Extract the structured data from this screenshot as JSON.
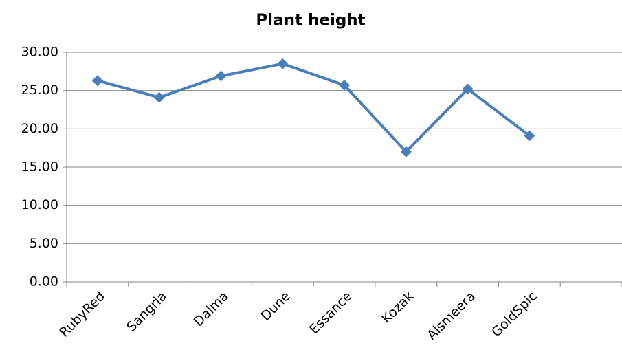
{
  "chart_data": {
    "type": "line",
    "title": "Plant height",
    "categories": [
      "RubyRed",
      "Sangria",
      "Dalma",
      "Dune",
      "Essance",
      "Kozak",
      "Alsmeera",
      "GoldSpic",
      null
    ],
    "values": [
      26.3,
      24.1,
      26.9,
      28.5,
      25.7,
      17.0,
      25.2,
      19.1,
      null
    ],
    "color": "#4a7ebb",
    "ylim": [
      0,
      30
    ],
    "yticks": [
      {
        "value": 0,
        "label": "0.00"
      },
      {
        "value": 5,
        "label": "5.00"
      },
      {
        "value": 10,
        "label": "10.00"
      },
      {
        "value": 15,
        "label": "15.00"
      },
      {
        "value": 20,
        "label": "20.00"
      },
      {
        "value": 25,
        "label": "25.00"
      },
      {
        "value": 30,
        "label": "30.00"
      }
    ],
    "grid": true
  }
}
